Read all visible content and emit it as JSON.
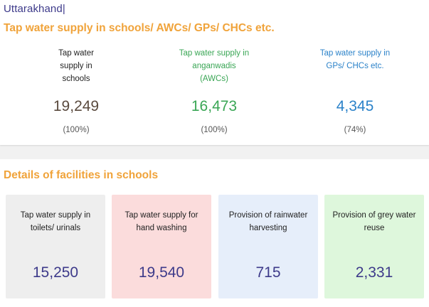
{
  "header": {
    "state": "Uttarakhand",
    "cursor": "|"
  },
  "overview": {
    "title": "Tap water supply in schools/ AWCs/ GPs/ CHCs etc.",
    "stats": [
      {
        "label": "Tap water supply in schools",
        "value": "19,249",
        "percent": "(100%)",
        "color": "#5a4a3e"
      },
      {
        "label": "Tap water supply in anganwadis (AWCs)",
        "value": "16,473",
        "percent": "(100%)",
        "color": "#3aa655"
      },
      {
        "label": "Tap water supply in GPs/ CHCs etc.",
        "value": "4,345",
        "percent": "(74%)",
        "color": "#2b82c9"
      }
    ]
  },
  "facilities": {
    "title": "Details of facilities in schools",
    "cards": [
      {
        "label": "Tap water supply in toilets/ urinals",
        "value": "15,250",
        "bg": "#eeeeee"
      },
      {
        "label": "Tap water supply for hand washing",
        "value": "19,540",
        "bg": "#fbdcdc"
      },
      {
        "label": "Provision of rainwater harvesting",
        "value": "715",
        "bg": "#e6eefa"
      },
      {
        "label": "Provision of grey water reuse",
        "value": "2,331",
        "bg": "#def7dc"
      }
    ]
  }
}
